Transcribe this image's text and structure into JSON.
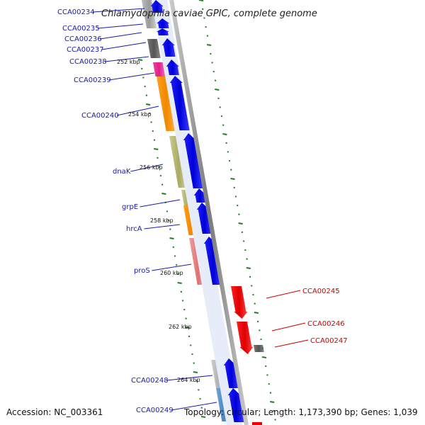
{
  "title": "Chlamydophila caviae GPIC, complete genome",
  "footer": {
    "accession": "Accession: NC_003361",
    "topology": "Topology: circular; Length: 1,173,390 bp; Genes: 1,039"
  },
  "ticks": [
    "252 kbp",
    "254 kbp",
    "256 kbp",
    "258 kbp",
    "260 kbp",
    "262 kbp",
    "264 kbp"
  ],
  "labels_left": [
    "CCA00234",
    "CCA00235",
    "CCA00236",
    "CCA00237",
    "CCA00238",
    "CCA00239",
    "CCA00240",
    "dnaK",
    "grpE",
    "hrcA",
    "proS",
    "CCA00248",
    "CCA00249"
  ],
  "labels_right": [
    "CCA00245",
    "CCA00246",
    "CCA00247"
  ],
  "colors": {
    "forward": "#0000ee",
    "reverse": "#ee0000",
    "backbone": "#808080",
    "tick": "#208020",
    "label_blue": "#1a1aa8",
    "label_red": "#cc0000"
  }
}
